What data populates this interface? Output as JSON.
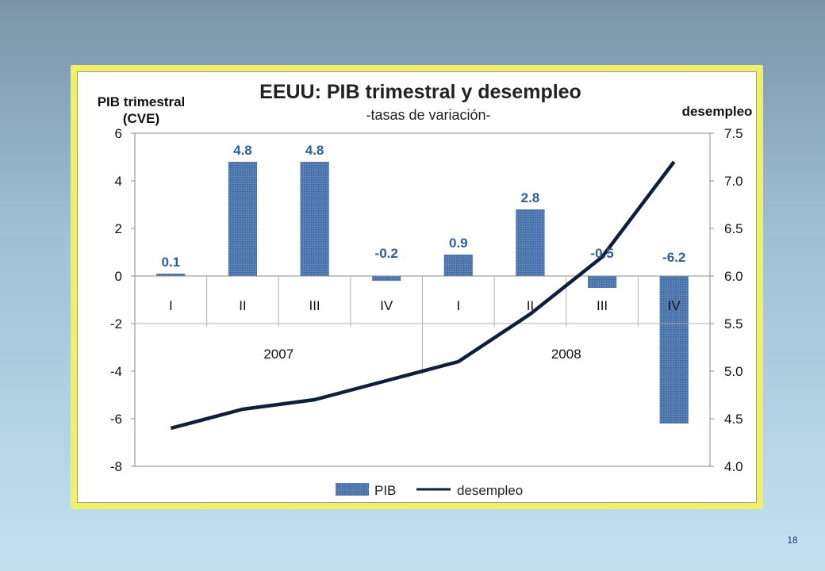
{
  "slide_number": "18",
  "chart_data": {
    "type": "bar",
    "title": "EEUU: PIB trimestral y desempleo",
    "subtitle": "-tasas de variación-",
    "ylabel_left": "PIB trimestral (CVE)",
    "ylabel_left_lines": [
      "PIB trimestral",
      "(CVE)"
    ],
    "ylabel_right": "desempleo",
    "categories": [
      "I",
      "II",
      "III",
      "IV",
      "I",
      "II",
      "III",
      "IV"
    ],
    "groups": [
      {
        "label": "2007",
        "span": 4
      },
      {
        "label": "2008",
        "span": 4
      }
    ],
    "ylim_left": [
      -8,
      6
    ],
    "yticks_left": [
      6,
      4,
      2,
      0,
      -2,
      -4,
      -6,
      -8
    ],
    "ylim_right": [
      4.0,
      7.5
    ],
    "yticks_right": [
      "7.5",
      "7.0",
      "6.5",
      "6.0",
      "5.5",
      "5.0",
      "4.5",
      "4.0"
    ],
    "grid": true,
    "legend_position": "bottom",
    "series": [
      {
        "name": "PIB",
        "type": "bar",
        "axis": "left",
        "color": "#4a72a8",
        "values": [
          0.1,
          4.8,
          4.8,
          -0.2,
          0.9,
          2.8,
          -0.5,
          -6.2
        ],
        "labels": [
          "0.1",
          "4.8",
          "4.8",
          "-0.2",
          "0.9",
          "2.8",
          "-0.5",
          "-6.2"
        ]
      },
      {
        "name": "desempleo",
        "type": "line",
        "axis": "right",
        "color": "#0f1f3a",
        "values": [
          4.4,
          4.6,
          4.7,
          4.9,
          5.1,
          5.6,
          6.2,
          7.2
        ]
      }
    ]
  }
}
